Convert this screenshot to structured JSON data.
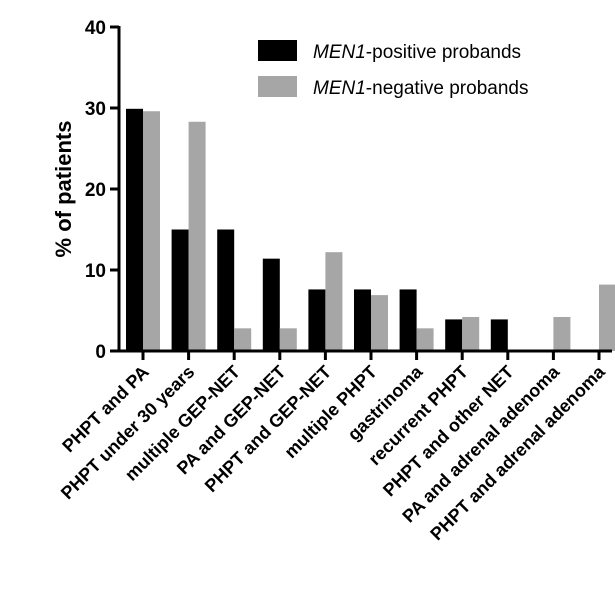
{
  "chart_data": {
    "type": "bar",
    "title": "",
    "xlabel": "",
    "ylabel": "% of patients",
    "ylim": [
      0,
      40
    ],
    "yticks": [
      0,
      10,
      20,
      30,
      40
    ],
    "grid": false,
    "legend_position": "top-right",
    "categories": [
      "PHPT and PA",
      "PHPT under 30 years",
      "multiple GEP-NET",
      "PA and GEP-NET",
      "PHPT and GEP-NET",
      "multiple PHPT",
      "gastrinoma",
      "recurrent PHPT",
      "PHPT and other NET",
      "PA and adrenal adenoma",
      "PHPT and adrenal adenoma"
    ],
    "series": [
      {
        "name_prefix": "MEN1",
        "name_suffix": "-positive probands",
        "color": "#000000",
        "values": [
          29.9,
          15.0,
          15.0,
          11.4,
          7.6,
          7.6,
          7.6,
          3.9,
          3.9,
          0,
          0
        ]
      },
      {
        "name_prefix": "MEN1",
        "name_suffix": "-negative probands",
        "color": "#a6a6a6",
        "values": [
          29.6,
          28.3,
          2.8,
          2.8,
          12.2,
          6.9,
          2.8,
          4.2,
          0,
          4.2,
          8.2
        ]
      }
    ]
  }
}
